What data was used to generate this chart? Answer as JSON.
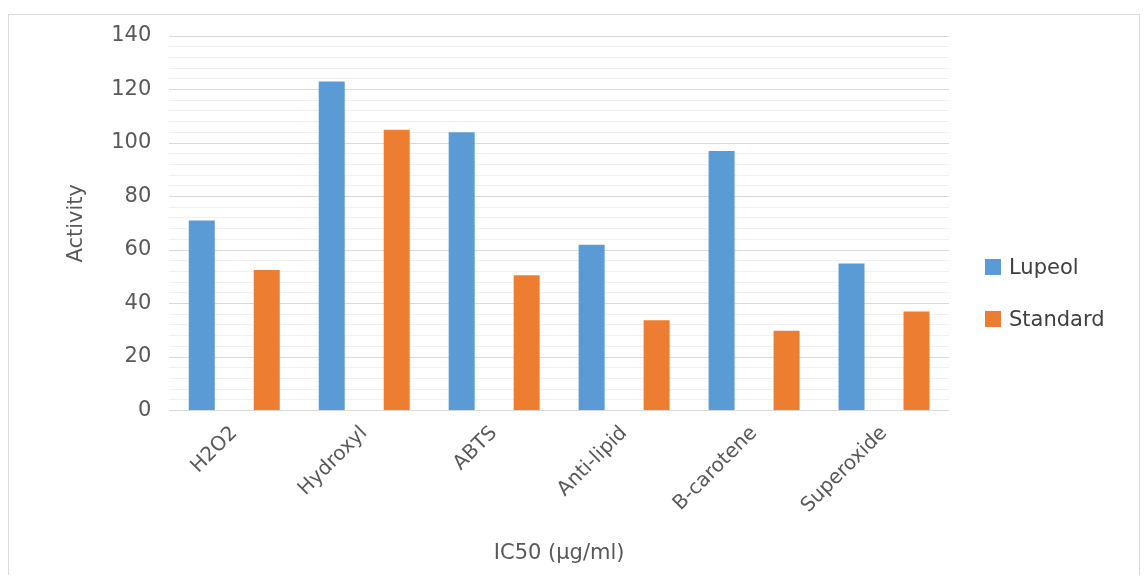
{
  "chart_data": {
    "type": "bar",
    "ylabel": "Activity",
    "xlabel": "IC50 (µg/ml)",
    "categories": [
      "H2O2",
      "Hydroxyl",
      "ABTS",
      "Anti-lipid",
      "B-carotene",
      "Superoxide"
    ],
    "series": [
      {
        "name": "Lupeol",
        "color": "#5b9bd5",
        "values": [
          71,
          123,
          104,
          62,
          97,
          55
        ]
      },
      {
        "name": "Standard",
        "color": "#ed7d31",
        "values": [
          52.5,
          105,
          50.6,
          33.7,
          29.8,
          37
        ]
      }
    ],
    "ylim": [
      0,
      140
    ],
    "yticks": [
      0,
      {
        "value": 4,
        "label": null
      },
      {
        "value": 8,
        "label": null
      },
      {
        "value": 12,
        "label": null
      },
      {
        "value": 16,
        "label": null
      },
      20,
      {
        "value": 24,
        "label": null
      },
      {
        "value": 28,
        "label": null
      },
      {
        "value": 32,
        "label": null
      },
      {
        "value": 36,
        "label": null
      },
      40,
      {
        "value": 44,
        "label": null
      },
      {
        "value": 48,
        "label": null
      },
      {
        "value": 52,
        "label": null
      },
      {
        "value": 56,
        "label": null
      },
      60,
      {
        "value": 64,
        "label": null
      },
      {
        "value": 68,
        "label": null
      },
      {
        "value": 72,
        "label": null
      },
      {
        "value": 76,
        "label": null
      },
      80,
      {
        "value": 84,
        "label": null
      },
      {
        "value": 88,
        "label": null
      },
      {
        "value": 92,
        "label": null
      },
      {
        "value": 96,
        "label": null
      },
      100,
      {
        "value": 104,
        "label": null
      },
      {
        "value": 108,
        "label": null
      },
      {
        "value": 112,
        "label": null
      },
      {
        "value": 116,
        "label": null
      },
      120,
      {
        "value": 124,
        "label": null
      },
      {
        "value": 128,
        "label": null
      },
      {
        "value": 132,
        "label": null
      },
      {
        "value": 136,
        "label": null
      },
      140
    ],
    "grid": "y",
    "legend": "right"
  }
}
